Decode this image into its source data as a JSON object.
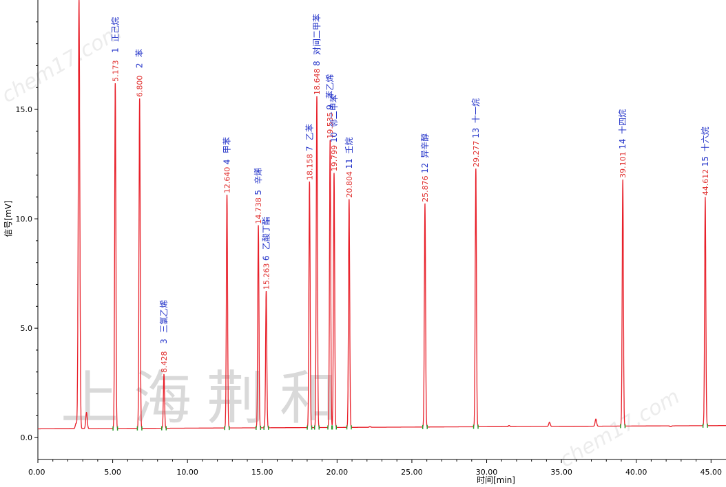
{
  "chart_data": {
    "type": "line",
    "xlabel": "时间[min]",
    "ylabel": "信号[mV]",
    "xlim": [
      0,
      46
    ],
    "ylim": [
      -1,
      20
    ],
    "x_ticks": [
      "0.00",
      "5.00",
      "10.00",
      "15.00",
      "20.00",
      "25.00",
      "30.00",
      "35.00",
      "40.00",
      "45.00"
    ],
    "y_ticks": [
      "0.0",
      "5.0",
      "10.0",
      "15.0"
    ],
    "baseline": 0.4,
    "baseline_end": 0.55,
    "solvent_peak": {
      "rt": 2.75,
      "height": 20
    },
    "minor_peaks": [
      {
        "rt": 3.25,
        "height": 1.15
      },
      {
        "rt": 2.55,
        "height": 0.65
      },
      {
        "rt": 22.2,
        "height": 0.5
      },
      {
        "rt": 31.5,
        "height": 0.55
      },
      {
        "rt": 34.2,
        "height": 0.7
      },
      {
        "rt": 37.3,
        "height": 0.85
      },
      {
        "rt": 42.3,
        "height": 0.5
      }
    ],
    "peaks": [
      {
        "no": "1",
        "rt": "5.173",
        "name": "正己烷",
        "height": 16.2
      },
      {
        "no": "2",
        "rt": "6.800",
        "name": "苯",
        "height": 15.5
      },
      {
        "no": "3",
        "rt": "8.428",
        "name": "三氯乙烯",
        "height": 2.9
      },
      {
        "no": "4",
        "rt": "12.640",
        "name": "甲苯",
        "height": 11.1
      },
      {
        "no": "5",
        "rt": "14.738",
        "name": "辛烯",
        "height": 9.7
      },
      {
        "no": "6",
        "rt": "15.263",
        "name": "乙酸丁酯",
        "height": 6.7
      },
      {
        "no": "7",
        "rt": "18.158",
        "name": "乙苯",
        "height": 11.7
      },
      {
        "no": "8",
        "rt": "18.648",
        "name": "对间二甲苯",
        "height": 15.6
      },
      {
        "no": "9",
        "rt": "19.535",
        "name": "苯乙烯",
        "height": 13.6
      },
      {
        "no": "10",
        "rt": "19.799",
        "name": "邻二甲苯",
        "height": 12.1
      },
      {
        "no": "11",
        "rt": "20.804",
        "name": "壬烷",
        "height": 10.9
      },
      {
        "no": "12",
        "rt": "25.876",
        "name": "异辛醇",
        "height": 10.7
      },
      {
        "no": "13",
        "rt": "29.277",
        "name": "十一烷",
        "height": 12.3
      },
      {
        "no": "14",
        "rt": "39.101",
        "name": "十四烷",
        "height": 11.8
      },
      {
        "no": "15",
        "rt": "44.612",
        "name": "十六烷",
        "height": 11.0
      }
    ],
    "line_color": "#e8202a",
    "rt_label_color": "#e0302f",
    "name_label_color": "#2030c8",
    "grid": false
  },
  "watermark": {
    "main": "上海荆和",
    "site": "chem17.com"
  }
}
